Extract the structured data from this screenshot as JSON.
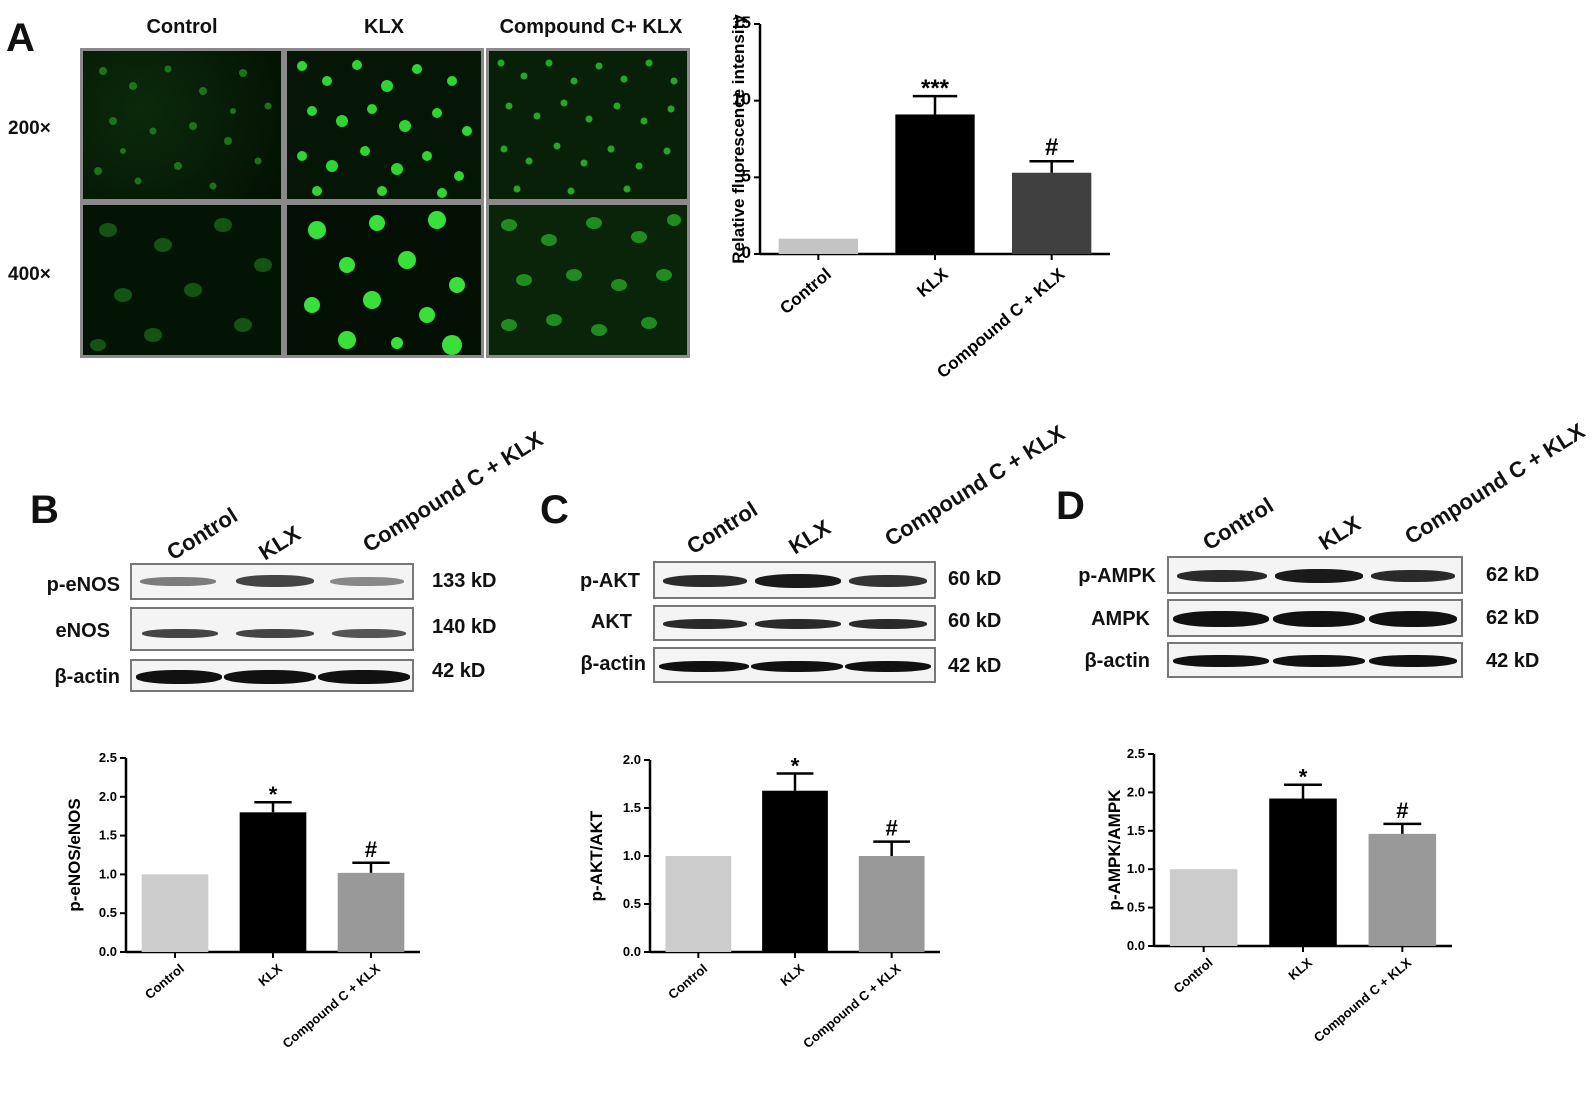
{
  "panel_a": {
    "letter": "A",
    "columns": [
      "Control",
      "KLX",
      "Compound C+ KLX"
    ],
    "rows": [
      "200×",
      "400×"
    ]
  },
  "panel_b": {
    "letter": "B",
    "lanes": [
      "Control",
      "KLX",
      "Compound C + KLX"
    ],
    "rows": [
      {
        "label": "p-eNOS",
        "kd": "133 kD"
      },
      {
        "label": "eNOS",
        "kd": "140 kD"
      },
      {
        "label": "β-actin",
        "kd": "42 kD"
      }
    ]
  },
  "panel_c": {
    "letter": "C",
    "lanes": [
      "Control",
      "KLX",
      "Compound C + KLX"
    ],
    "rows": [
      {
        "label": "p-AKT",
        "kd": "60 kD"
      },
      {
        "label": "AKT",
        "kd": "60 kD"
      },
      {
        "label": "β-actin",
        "kd": "42 kD"
      }
    ]
  },
  "panel_d": {
    "letter": "D",
    "lanes": [
      "Control",
      "KLX",
      "Compound C + KLX"
    ],
    "rows": [
      {
        "label": "p-AMPK",
        "kd": "62 kD"
      },
      {
        "label": "AMPK",
        "kd": "62 kD"
      },
      {
        "label": "β-actin",
        "kd": "42 kD"
      }
    ]
  },
  "chart_data": [
    {
      "type": "bar",
      "id": "fluor",
      "categories": [
        "Control",
        "KLX",
        "Compound C + KLX"
      ],
      "values": [
        1.0,
        9.1,
        5.3
      ],
      "errors": [
        0,
        1.2,
        0.75
      ],
      "annotations": [
        "",
        "***",
        "#"
      ],
      "ylabel": "Relative fluorescence intensity",
      "ylim": [
        0,
        15
      ],
      "yticks": [
        0,
        5,
        10,
        15
      ],
      "ytick_labels": [
        "0",
        "5",
        "10",
        "15"
      ],
      "colors": [
        "#c4c4c4",
        "#000000",
        "#404040"
      ]
    },
    {
      "type": "bar",
      "id": "enos",
      "categories": [
        "Control",
        "KLX",
        "Compound C + KLX"
      ],
      "values": [
        1.0,
        1.8,
        1.02
      ],
      "errors": [
        0,
        0.13,
        0.13
      ],
      "annotations": [
        "",
        "*",
        "#"
      ],
      "ylabel": "p-eNOS/eNOS",
      "ylim": [
        0,
        2.5
      ],
      "yticks": [
        0,
        0.5,
        1.0,
        1.5,
        2.0,
        2.5
      ],
      "ytick_labels": [
        "0.0",
        "0.5",
        "1.0",
        "1.5",
        "2.0",
        "2.5"
      ],
      "colors": [
        "#cccccc",
        "#000000",
        "#999999"
      ]
    },
    {
      "type": "bar",
      "id": "akt",
      "categories": [
        "Control",
        "KLX",
        "Compound C + KLX"
      ],
      "values": [
        1.0,
        1.68,
        1.0
      ],
      "errors": [
        0,
        0.18,
        0.15
      ],
      "annotations": [
        "",
        "*",
        "#"
      ],
      "ylabel": "p-AKT/AKT",
      "ylim": [
        0,
        2.0
      ],
      "yticks": [
        0,
        0.5,
        1.0,
        1.5,
        2.0
      ],
      "ytick_labels": [
        "0.0",
        "0.5",
        "1.0",
        "1.5",
        "2.0"
      ],
      "colors": [
        "#cccccc",
        "#000000",
        "#999999"
      ]
    },
    {
      "type": "bar",
      "id": "ampk",
      "categories": [
        "Control",
        "KLX",
        "Compound C + KLX"
      ],
      "values": [
        1.0,
        1.92,
        1.46
      ],
      "errors": [
        0,
        0.18,
        0.13
      ],
      "annotations": [
        "",
        "*",
        "#"
      ],
      "ylabel": "p-AMPK/AMPK",
      "ylim": [
        0,
        2.5
      ],
      "yticks": [
        0,
        0.5,
        1.0,
        1.5,
        2.0,
        2.5
      ],
      "ytick_labels": [
        "0.0",
        "0.5",
        "1.0",
        "1.5",
        "2.0",
        "2.5"
      ],
      "colors": [
        "#cccccc",
        "#000000",
        "#999999"
      ]
    }
  ]
}
